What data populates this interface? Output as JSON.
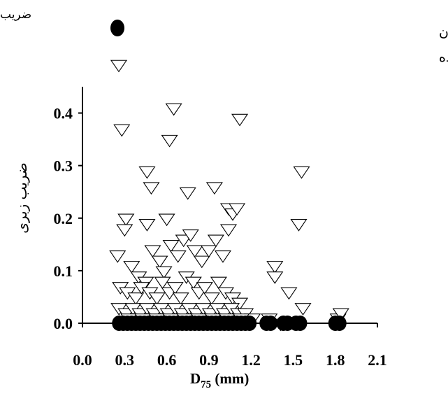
{
  "chart_data": {
    "type": "scatter",
    "corner_label": "ضریب",
    "xlabel_main": "D",
    "xlabel_sub": "75",
    "xlabel_unit": " (mm)",
    "ylabel": "ضریب زبری",
    "xlim": [
      0.0,
      2.1
    ],
    "ylim": [
      0.0,
      0.45
    ],
    "xticks": [
      "0.0",
      "0.3",
      "0.6",
      "0.9",
      "1.2",
      "1.5",
      "1.8",
      "2.1"
    ],
    "xtick_values": [
      0.0,
      0.3,
      0.6,
      0.9,
      1.2,
      1.5,
      1.8,
      2.1
    ],
    "yticks": [
      "0.0",
      "0.1",
      "0.2",
      "0.3",
      "0.4"
    ],
    "ytick_values": [
      0.0,
      0.1,
      0.2,
      0.3,
      0.4
    ],
    "grid": false,
    "legend_position": "top",
    "series": [
      {
        "name": "ضریب زبری حاصل از رابطه هندرسون",
        "marker": "filled-circle",
        "color": "#000000",
        "points": [
          [
            0.26,
            0.0
          ],
          [
            0.29,
            0.0
          ],
          [
            0.32,
            0.0
          ],
          [
            0.35,
            0.0
          ],
          [
            0.38,
            0.0
          ],
          [
            0.41,
            0.0
          ],
          [
            0.44,
            0.0
          ],
          [
            0.47,
            0.0
          ],
          [
            0.5,
            0.0
          ],
          [
            0.53,
            0.0
          ],
          [
            0.56,
            0.0
          ],
          [
            0.59,
            0.0
          ],
          [
            0.62,
            0.0
          ],
          [
            0.65,
            0.0
          ],
          [
            0.68,
            0.0
          ],
          [
            0.71,
            0.0
          ],
          [
            0.74,
            0.0
          ],
          [
            0.77,
            0.0
          ],
          [
            0.8,
            0.0
          ],
          [
            0.83,
            0.0
          ],
          [
            0.86,
            0.0
          ],
          [
            0.89,
            0.0
          ],
          [
            0.92,
            0.0
          ],
          [
            0.95,
            0.0
          ],
          [
            0.98,
            0.0
          ],
          [
            1.01,
            0.0
          ],
          [
            1.04,
            0.0
          ],
          [
            1.07,
            0.0
          ],
          [
            1.1,
            0.0
          ],
          [
            1.13,
            0.0
          ],
          [
            1.16,
            0.0
          ],
          [
            1.19,
            0.0
          ],
          [
            1.31,
            0.0
          ],
          [
            1.34,
            0.0
          ],
          [
            1.43,
            0.0
          ],
          [
            1.46,
            0.0
          ],
          [
            1.52,
            0.0
          ],
          [
            1.55,
            0.0
          ],
          [
            1.8,
            0.0
          ],
          [
            1.83,
            0.0
          ]
        ]
      },
      {
        "name": "ضریب زبری اندازه‌گیری شده",
        "marker": "hollow-down-triangle",
        "color": "#000000",
        "points": [
          [
            0.28,
            0.37
          ],
          [
            0.31,
            0.2
          ],
          [
            0.3,
            0.18
          ],
          [
            0.46,
            0.29
          ],
          [
            0.49,
            0.26
          ],
          [
            0.46,
            0.19
          ],
          [
            0.62,
            0.35
          ],
          [
            0.6,
            0.2
          ],
          [
            0.65,
            0.41
          ],
          [
            0.75,
            0.25
          ],
          [
            0.94,
            0.26
          ],
          [
            1.04,
            0.22
          ],
          [
            1.07,
            0.21
          ],
          [
            1.1,
            0.22
          ],
          [
            1.04,
            0.18
          ],
          [
            1.12,
            0.39
          ],
          [
            1.56,
            0.29
          ],
          [
            1.54,
            0.19
          ],
          [
            0.25,
            0.13
          ],
          [
            0.35,
            0.11
          ],
          [
            0.4,
            0.09
          ],
          [
            0.45,
            0.08
          ],
          [
            0.5,
            0.14
          ],
          [
            0.55,
            0.12
          ],
          [
            0.58,
            0.1
          ],
          [
            0.63,
            0.15
          ],
          [
            0.68,
            0.13
          ],
          [
            0.72,
            0.16
          ],
          [
            0.77,
            0.17
          ],
          [
            0.8,
            0.14
          ],
          [
            0.85,
            0.12
          ],
          [
            0.9,
            0.14
          ],
          [
            0.95,
            0.16
          ],
          [
            1.0,
            0.13
          ],
          [
            0.27,
            0.07
          ],
          [
            0.32,
            0.06
          ],
          [
            0.38,
            0.05
          ],
          [
            0.42,
            0.07
          ],
          [
            0.48,
            0.06
          ],
          [
            0.53,
            0.05
          ],
          [
            0.57,
            0.08
          ],
          [
            0.62,
            0.06
          ],
          [
            0.66,
            0.07
          ],
          [
            0.7,
            0.05
          ],
          [
            0.74,
            0.09
          ],
          [
            0.79,
            0.08
          ],
          [
            0.83,
            0.06
          ],
          [
            0.87,
            0.07
          ],
          [
            0.92,
            0.05
          ],
          [
            0.97,
            0.08
          ],
          [
            1.02,
            0.06
          ],
          [
            1.07,
            0.05
          ],
          [
            1.12,
            0.04
          ],
          [
            0.26,
            0.03
          ],
          [
            0.31,
            0.02
          ],
          [
            0.36,
            0.03
          ],
          [
            0.41,
            0.02
          ],
          [
            0.46,
            0.03
          ],
          [
            0.51,
            0.02
          ],
          [
            0.56,
            0.03
          ],
          [
            0.61,
            0.02
          ],
          [
            0.66,
            0.03
          ],
          [
            0.71,
            0.02
          ],
          [
            0.76,
            0.03
          ],
          [
            0.81,
            0.02
          ],
          [
            0.86,
            0.03
          ],
          [
            0.91,
            0.02
          ],
          [
            0.96,
            0.03
          ],
          [
            1.01,
            0.02
          ],
          [
            1.06,
            0.03
          ],
          [
            1.11,
            0.02
          ],
          [
            1.16,
            0.02
          ],
          [
            1.21,
            0.01
          ],
          [
            1.37,
            0.11
          ],
          [
            1.37,
            0.09
          ],
          [
            1.47,
            0.06
          ],
          [
            1.57,
            0.03
          ],
          [
            1.33,
            0.01
          ],
          [
            1.41,
            0.0
          ],
          [
            1.82,
            0.01
          ],
          [
            1.84,
            0.02
          ],
          [
            0.33,
            0.01
          ],
          [
            0.43,
            0.01
          ],
          [
            0.53,
            0.01
          ],
          [
            0.63,
            0.01
          ],
          [
            0.73,
            0.01
          ],
          [
            0.83,
            0.01
          ],
          [
            0.93,
            0.01
          ],
          [
            1.03,
            0.01
          ],
          [
            1.13,
            0.01
          ]
        ]
      }
    ]
  }
}
